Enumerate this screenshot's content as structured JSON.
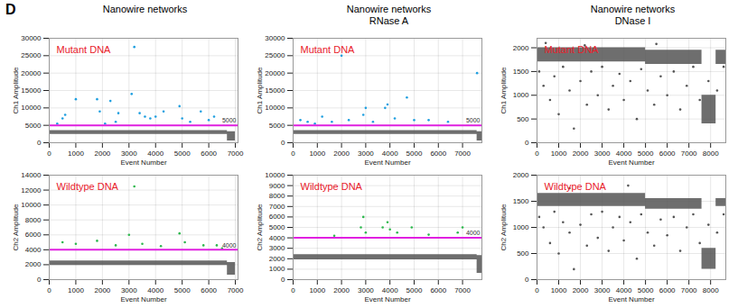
{
  "figure_label": "D",
  "chart_data": [
    {
      "type": "scatter",
      "title": "Nanowire networks",
      "annotation": "Mutant DNA",
      "x_label": "Event Number",
      "y_label": "Ch1 Amplitude",
      "xlim": [
        0,
        7100
      ],
      "xticks": [
        0,
        1000,
        2000,
        3000,
        4000,
        5000,
        6000,
        7000
      ],
      "ylim": [
        0,
        30000
      ],
      "yticks": [
        0,
        5000,
        10000,
        15000,
        20000,
        25000,
        30000
      ],
      "grid": true,
      "threshold": {
        "value": 5000,
        "label": "5000",
        "color": "#e020e0"
      },
      "bands": [
        {
          "color": "#555555",
          "x": [
            0,
            6700,
            7000
          ],
          "low": [
            2400,
            500,
            500
          ],
          "high": [
            3500,
            3200,
            3200
          ]
        }
      ],
      "series": [
        {
          "color": "#1f9fe0",
          "marker": "dot",
          "x": [
            300,
            500,
            600,
            1000,
            1800,
            1900,
            2100,
            2300,
            2500,
            2600,
            3100,
            3200,
            3400,
            3600,
            3800,
            4000,
            4300,
            4900,
            5000,
            5300,
            5700,
            6000,
            6200
          ],
          "y": [
            5500,
            7000,
            8000,
            12500,
            12500,
            9000,
            5500,
            12000,
            6000,
            8500,
            14000,
            27500,
            8500,
            7500,
            7000,
            7500,
            9000,
            10500,
            7000,
            6000,
            9000,
            6500,
            7500
          ]
        }
      ]
    },
    {
      "type": "scatter",
      "title": "Nanowire networks\nRNase A",
      "annotation": "Mutant DNA",
      "x_label": "Event Number",
      "y_label": "Ch1 Amplitude",
      "xlim": [
        0,
        7800
      ],
      "xticks": [
        0,
        1000,
        2000,
        3000,
        4000,
        5000,
        6000,
        7000
      ],
      "ylim": [
        0,
        30000
      ],
      "yticks": [
        0,
        5000,
        10000,
        15000,
        20000,
        25000,
        30000
      ],
      "grid": true,
      "threshold": {
        "value": 5000,
        "label": "5000",
        "color": "#e020e0"
      },
      "bands": [
        {
          "color": "#555555",
          "x": [
            0,
            7600,
            7800
          ],
          "low": [
            2400,
            500,
            500
          ],
          "high": [
            3500,
            3200,
            3200
          ]
        }
      ],
      "series": [
        {
          "color": "#1f9fe0",
          "marker": "dot",
          "x": [
            300,
            600,
            900,
            1200,
            1600,
            2000,
            2300,
            2900,
            3000,
            3300,
            3800,
            3900,
            4200,
            4700,
            5000,
            5600,
            6400,
            7600
          ],
          "y": [
            6500,
            6000,
            5500,
            7500,
            6000,
            25000,
            6500,
            8000,
            10000,
            6000,
            10000,
            11000,
            7000,
            13000,
            6500,
            6500,
            6000,
            20000
          ]
        }
      ]
    },
    {
      "type": "scatter",
      "title": "Nanowire networks\nDNase I",
      "annotation": "Mutant DNA",
      "x_label": "Event Number",
      "y_label": "Ch1 Amplitude",
      "xlim": [
        0,
        8700
      ],
      "xticks": [
        0,
        1000,
        2000,
        3000,
        4000,
        5000,
        6000,
        7000,
        8000
      ],
      "ylim": [
        0,
        2200
      ],
      "yticks": [
        0,
        500,
        1000,
        1500,
        2000
      ],
      "grid": true,
      "bands": [
        {
          "color": "#555555",
          "x": [
            0,
            5000,
            7600,
            8250,
            8700
          ],
          "low": [
            1700,
            1650,
            400,
            1650,
            1650
          ],
          "high": [
            2000,
            1950,
            1000,
            1950,
            1950
          ]
        }
      ],
      "series": [
        {
          "color": "#555555",
          "marker": "dot",
          "x": [
            100,
            300,
            600,
            800,
            1000,
            1200,
            1500,
            1700,
            2000,
            2300,
            2500,
            2800,
            3000,
            3300,
            3500,
            3800,
            4000,
            4300,
            4600,
            4800,
            5100,
            5400,
            5700,
            6000,
            6300,
            6600,
            6900,
            7200,
            7500,
            7900,
            8300,
            8600,
            400,
            2200,
            5500
          ],
          "y": [
            1500,
            1200,
            900,
            1400,
            600,
            1600,
            1100,
            300,
            1300,
            800,
            1500,
            1000,
            1600,
            700,
            1200,
            1450,
            900,
            1300,
            500,
            1550,
            1100,
            800,
            1400,
            1000,
            1500,
            700,
            1200,
            1600,
            900,
            1300,
            1100,
            1600,
            2100,
            2050,
            2080
          ]
        }
      ]
    },
    {
      "type": "scatter",
      "annotation": "Wildtype DNA",
      "x_label": "Event Number",
      "y_label": "Ch2 Amplitude",
      "xlim": [
        0,
        7100
      ],
      "xticks": [
        0,
        1000,
        2000,
        3000,
        4000,
        5000,
        6000,
        7000
      ],
      "ylim": [
        0,
        14000
      ],
      "yticks": [
        0,
        2000,
        4000,
        6000,
        8000,
        10000,
        12000,
        14000
      ],
      "grid": true,
      "threshold": {
        "value": 4000,
        "label": "4000",
        "color": "#e020e0"
      },
      "bands": [
        {
          "color": "#555555",
          "x": [
            0,
            6700,
            7000
          ],
          "low": [
            1900,
            600,
            600
          ],
          "high": [
            2500,
            2300,
            2300
          ]
        }
      ],
      "series": [
        {
          "color": "#2db84d",
          "marker": "dot",
          "x": [
            500,
            1000,
            1800,
            2500,
            3000,
            3200,
            3500,
            4200,
            4900,
            5100,
            5800,
            6300,
            6500
          ],
          "y": [
            5000,
            4800,
            5200,
            4600,
            6000,
            12500,
            4800,
            4500,
            6200,
            5000,
            4600,
            4600,
            4200
          ]
        }
      ]
    },
    {
      "type": "scatter",
      "annotation": "Wildtype DNA",
      "x_label": "Event Number",
      "y_label": "Ch2 Amplitude",
      "xlim": [
        0,
        7800
      ],
      "xticks": [
        0,
        1000,
        2000,
        3000,
        4000,
        5000,
        6000,
        7000
      ],
      "ylim": [
        0,
        10000
      ],
      "yticks": [
        0,
        1000,
        2000,
        3000,
        4000,
        5000,
        6000,
        7000,
        8000,
        9000,
        10000
      ],
      "grid": true,
      "threshold": {
        "value": 4000,
        "label": "4000",
        "color": "#e020e0"
      },
      "bands": [
        {
          "color": "#555555",
          "x": [
            0,
            7600,
            7800
          ],
          "low": [
            1900,
            600,
            600
          ],
          "high": [
            2400,
            2300,
            2300
          ]
        }
      ],
      "series": [
        {
          "color": "#2db84d",
          "marker": "dot",
          "x": [
            1700,
            2800,
            2900,
            3000,
            3700,
            3900,
            4000,
            4300,
            4900,
            5600,
            6800,
            7000
          ],
          "y": [
            4200,
            5000,
            6000,
            4500,
            5000,
            5500,
            4800,
            4500,
            5000,
            4300,
            4500,
            5000
          ]
        }
      ]
    },
    {
      "type": "scatter",
      "annotation": "Wildtype DNA",
      "x_label": "Event Number",
      "y_label": "Ch2 Amplitude",
      "xlim": [
        0,
        8700
      ],
      "xticks": [
        0,
        1000,
        2000,
        3000,
        4000,
        5000,
        6000,
        7000,
        8000
      ],
      "ylim": [
        0,
        2000
      ],
      "yticks": [
        0,
        500,
        1000,
        1500,
        2000
      ],
      "grid": true,
      "bands": [
        {
          "color": "#555555",
          "x": [
            0,
            5000,
            7600,
            8250,
            8700
          ],
          "low": [
            1400,
            1350,
            200,
            1400,
            1400
          ],
          "high": [
            1650,
            1550,
            600,
            1550,
            1550
          ]
        }
      ],
      "series": [
        {
          "color": "#555555",
          "marker": "dot",
          "x": [
            100,
            300,
            600,
            800,
            1000,
            1200,
            1500,
            1700,
            2000,
            2300,
            2500,
            2800,
            3000,
            3300,
            3500,
            3800,
            4000,
            4300,
            4600,
            4800,
            5100,
            5400,
            5700,
            6000,
            6300,
            6600,
            6900,
            7200,
            7500,
            7900,
            8300,
            8600,
            1500,
            4200
          ],
          "y": [
            1200,
            1000,
            700,
            1300,
            500,
            1100,
            900,
            200,
            1050,
            650,
            1250,
            800,
            1300,
            550,
            1000,
            1200,
            750,
            1100,
            400,
            1250,
            900,
            650,
            1150,
            850,
            1200,
            550,
            1000,
            1250,
            700,
            1050,
            900,
            1250,
            1750,
            1800
          ]
        }
      ]
    }
  ]
}
